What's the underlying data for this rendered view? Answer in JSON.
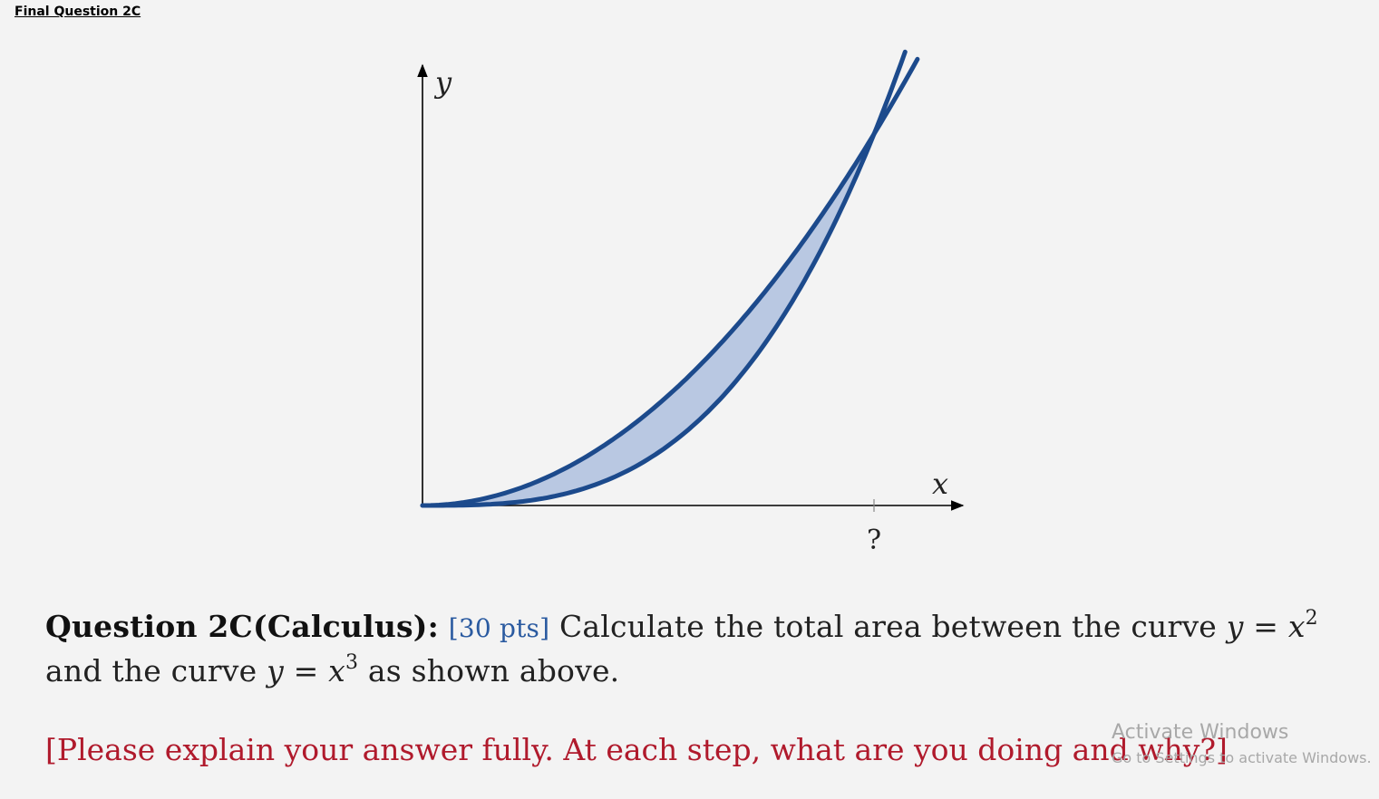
{
  "doc_title": "Final Question 2C",
  "figure": {
    "y_axis_label": "y",
    "x_axis_label": "x",
    "intersection_tick_label": "?"
  },
  "question": {
    "heading": "Question 2C(Calculus):",
    "points": "[30 pts]",
    "text_part1": "Calculate the total area between the curve",
    "curve1_lhs": "y",
    "equals": "=",
    "curve1_base": "x",
    "curve1_exp": "2",
    "text_part2": "and the curve",
    "curve2_lhs": "y",
    "curve2_base": "x",
    "curve2_exp": "3",
    "text_part3": "as shown above."
  },
  "instruction": "[Please explain your answer fully. At each step, what are you doing and why?]",
  "watermark": {
    "line1": "Activate Windows",
    "line2": "Go to Settings to activate Windows."
  },
  "colors": {
    "curve": "#1c4a8c",
    "fill": "#b9c8e2",
    "instruction": "#b01a2c",
    "points": "#2a5aa0"
  }
}
